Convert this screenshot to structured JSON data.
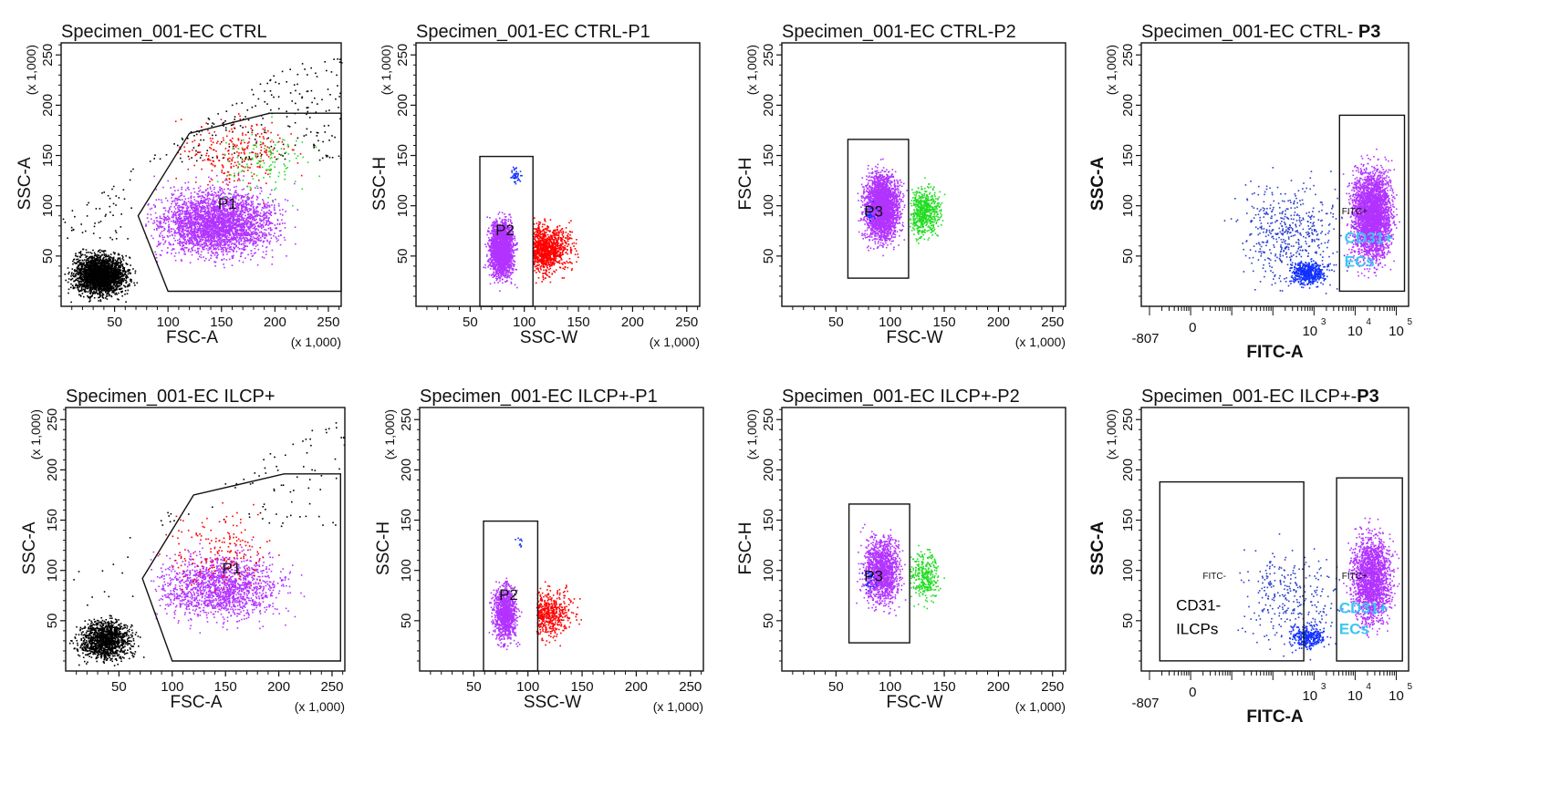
{
  "colors": {
    "ungated": "#000000",
    "p1": "#b233ff",
    "outside_p2": "#ff0000",
    "outside_p3": "#22dd22",
    "debris": "#1030ff",
    "sparse": "#2a3fcc",
    "annotation": "#38c8f0"
  },
  "chart_data": [
    {
      "type": "scatter",
      "id": "ctrl-fsc-ssc",
      "title": "Specimen_001-EC CTRL",
      "xlabel": "FSC-A",
      "ylabel": "SSC-A",
      "x_multiplier": "(x 1,000)",
      "y_multiplier": "(x 1,000)",
      "xlim": [
        0,
        262
      ],
      "ylim": [
        0,
        262
      ],
      "xticks": [
        50,
        100,
        150,
        200,
        250
      ],
      "yticks": [
        50,
        100,
        150,
        200,
        250
      ],
      "xticklabels": [
        "50",
        "100",
        "150",
        "200",
        "250"
      ],
      "yticklabels": [
        "50",
        "100",
        "150",
        "200",
        "250"
      ],
      "gates": [
        {
          "label": "P1",
          "shape": "polygon",
          "points": [
            [
              72,
              90
            ],
            [
              120,
              172
            ],
            [
              195,
              192
            ],
            [
              262,
              192
            ],
            [
              262,
              15
            ],
            [
              100,
              15
            ]
          ]
        }
      ],
      "populations": [
        {
          "color": "ungated",
          "density": "high",
          "region": "low FSC debris and events outside P1"
        },
        {
          "color": "p1",
          "density": "high",
          "region": "inside P1"
        }
      ]
    },
    {
      "type": "scatter",
      "id": "ctrl-sscw-ssch",
      "title": "Specimen_001-EC CTRL-P1",
      "xlabel": "SSC-W",
      "ylabel": "SSC-H",
      "x_multiplier": "(x 1,000)",
      "y_multiplier": "(x 1,000)",
      "xlim": [
        0,
        262
      ],
      "ylim": [
        0,
        262
      ],
      "xticks": [
        50,
        100,
        150,
        200,
        250
      ],
      "yticks": [
        50,
        100,
        150,
        200,
        250
      ],
      "xticklabels": [
        "50",
        "100",
        "150",
        "200",
        "250"
      ],
      "yticklabels": [
        "50",
        "100",
        "150",
        "200",
        "250"
      ],
      "gates": [
        {
          "label": "P2",
          "shape": "rectangle",
          "x": [
            59,
            108
          ],
          "y": [
            0,
            149
          ]
        }
      ],
      "populations": [
        {
          "color": "p1",
          "density": "high",
          "region": "inside P2"
        },
        {
          "color": "outside_p2",
          "density": "medium",
          "region": "SSC-W above gate"
        }
      ]
    },
    {
      "type": "scatter",
      "id": "ctrl-fscw-fsch",
      "title": "Specimen_001-EC CTRL-P2",
      "xlabel": "FSC-W",
      "ylabel": "FSC-H",
      "x_multiplier": "(x 1,000)",
      "y_multiplier": "(x 1,000)",
      "xlim": [
        0,
        262
      ],
      "ylim": [
        0,
        262
      ],
      "xticks": [
        50,
        100,
        150,
        200,
        250
      ],
      "yticks": [
        50,
        100,
        150,
        200,
        250
      ],
      "xticklabels": [
        "50",
        "100",
        "150",
        "200",
        "250"
      ],
      "yticklabels": [
        "50",
        "100",
        "150",
        "200",
        "250"
      ],
      "gates": [
        {
          "label": "P3",
          "shape": "rectangle",
          "x": [
            61,
            117
          ],
          "y": [
            28,
            166
          ]
        }
      ],
      "populations": [
        {
          "color": "p1",
          "density": "high",
          "region": "inside P3"
        },
        {
          "color": "outside_p3",
          "density": "medium",
          "region": "FSC-W above gate"
        }
      ]
    },
    {
      "type": "scatter",
      "id": "ctrl-fitc-ssc",
      "title": "Specimen_001-EC CTRL- ",
      "title_bold": "P3",
      "xlabel": "FITC-A",
      "ylabel": "SSC-A",
      "y_multiplier": "(x 1,000)",
      "x_scale": "biexponential",
      "ylim": [
        0,
        262
      ],
      "yticks": [
        50,
        100,
        150,
        200,
        250
      ],
      "yticklabels": [
        "50",
        "100",
        "150",
        "200",
        "250"
      ],
      "xticklabels": [
        "-807",
        "0",
        "10",
        "3",
        "10",
        "4",
        "10",
        "5"
      ],
      "gates": [
        {
          "label": "FITC+",
          "shape": "rectangle",
          "x_decade": [
            3.62,
            5.2
          ],
          "y": [
            15,
            190
          ]
        }
      ],
      "annotations": [
        {
          "text": "CD31+",
          "color": "annotation"
        },
        {
          "text": "ECs",
          "color": "annotation"
        }
      ],
      "populations": [
        {
          "color": "p1",
          "density": "high",
          "region": "FITC positive"
        },
        {
          "color": "debris",
          "density": "medium",
          "region": "low SSC near 10^3"
        },
        {
          "color": "sparse",
          "density": "low",
          "region": "scattered"
        }
      ]
    },
    {
      "type": "scatter",
      "id": "ilcp-fsc-ssc",
      "title": "Specimen_001-EC ILCP+",
      "xlabel": "FSC-A",
      "ylabel": "SSC-A",
      "x_multiplier": "(x 1,000)",
      "y_multiplier": "(x 1,000)",
      "xlim": [
        0,
        262
      ],
      "ylim": [
        0,
        262
      ],
      "xticks": [
        50,
        100,
        150,
        200,
        250
      ],
      "yticks": [
        50,
        100,
        150,
        200,
        250
      ],
      "xticklabels": [
        "50",
        "100",
        "150",
        "200",
        "250"
      ],
      "yticklabels": [
        "50",
        "100",
        "150",
        "200",
        "250"
      ],
      "gates": [
        {
          "label": "P1",
          "shape": "polygon",
          "points": [
            [
              72,
              92
            ],
            [
              120,
              175
            ],
            [
              205,
              196
            ],
            [
              258,
              196
            ],
            [
              258,
              10
            ],
            [
              100,
              10
            ]
          ]
        }
      ],
      "populations": [
        {
          "color": "ungated",
          "density": "medium",
          "region": "low FSC debris"
        },
        {
          "color": "p1",
          "density": "medium",
          "region": "inside P1"
        },
        {
          "color": "outside_p2",
          "density": "low",
          "region": "inside P1"
        }
      ]
    },
    {
      "type": "scatter",
      "id": "ilcp-sscw-ssch",
      "title": "Specimen_001-EC ILCP+-P1",
      "xlabel": "SSC-W",
      "ylabel": "SSC-H",
      "x_multiplier": "(x 1,000)",
      "y_multiplier": "(x 1,000)",
      "xlim": [
        0,
        262
      ],
      "ylim": [
        0,
        262
      ],
      "xticks": [
        50,
        100,
        150,
        200,
        250
      ],
      "yticks": [
        50,
        100,
        150,
        200,
        250
      ],
      "xticklabels": [
        "50",
        "100",
        "150",
        "200",
        "250"
      ],
      "yticklabels": [
        "50",
        "100",
        "150",
        "200",
        "250"
      ],
      "gates": [
        {
          "label": "P2",
          "shape": "rectangle",
          "x": [
            59,
            109
          ],
          "y": [
            0,
            149
          ]
        }
      ],
      "populations": [
        {
          "color": "p1",
          "density": "medium",
          "region": "inside P2"
        },
        {
          "color": "outside_p2",
          "density": "low",
          "region": "SSC-W above gate"
        }
      ]
    },
    {
      "type": "scatter",
      "id": "ilcp-fscw-fsch",
      "title": "Specimen_001-EC ILCP+-P2",
      "xlabel": "FSC-W",
      "ylabel": "FSC-H",
      "x_multiplier": "(x 1,000)",
      "y_multiplier": "(x 1,000)",
      "xlim": [
        0,
        262
      ],
      "ylim": [
        0,
        262
      ],
      "xticks": [
        50,
        100,
        150,
        200,
        250
      ],
      "yticks": [
        50,
        100,
        150,
        200,
        250
      ],
      "xticklabels": [
        "50",
        "100",
        "150",
        "200",
        "250"
      ],
      "yticklabels": [
        "50",
        "100",
        "150",
        "200",
        "250"
      ],
      "gates": [
        {
          "label": "P3",
          "shape": "rectangle",
          "x": [
            62,
            118
          ],
          "y": [
            28,
            166
          ]
        }
      ],
      "populations": [
        {
          "color": "p1",
          "density": "medium",
          "region": "inside P3"
        },
        {
          "color": "outside_p3",
          "density": "low",
          "region": "FSC-W above gate"
        }
      ]
    },
    {
      "type": "scatter",
      "id": "ilcp-fitc-ssc",
      "title": "Specimen_001-EC ILCP+-",
      "title_bold": "P3",
      "xlabel": "FITC-A",
      "ylabel": "SSC-A",
      "y_multiplier": "(x 1,000)",
      "x_scale": "biexponential",
      "ylim": [
        0,
        262
      ],
      "yticks": [
        50,
        100,
        150,
        200,
        250
      ],
      "yticklabels": [
        "50",
        "100",
        "150",
        "200",
        "250"
      ],
      "xticklabels": [
        "-807",
        "0",
        "10",
        "3",
        "10",
        "4",
        "10",
        "5"
      ],
      "gates": [
        {
          "label": "FITC-",
          "shape": "rectangle",
          "x_decade": [
            -0.75,
            2.75
          ],
          "y": [
            10,
            188
          ]
        },
        {
          "label": "FITC+",
          "shape": "rectangle",
          "x_decade": [
            3.55,
            5.15
          ],
          "y": [
            10,
            192
          ]
        }
      ],
      "annotations": [
        {
          "text": "CD31-",
          "color": "ungated"
        },
        {
          "text": "ILCPs",
          "color": "ungated"
        },
        {
          "text": "CD31+",
          "color": "annotation"
        },
        {
          "text": "ECs",
          "color": "annotation"
        }
      ],
      "populations": [
        {
          "color": "p1",
          "density": "medium",
          "region": "FITC positive"
        },
        {
          "color": "debris",
          "density": "low",
          "region": "low SSC band"
        },
        {
          "color": "sparse",
          "density": "low",
          "region": "scattered"
        }
      ]
    }
  ]
}
